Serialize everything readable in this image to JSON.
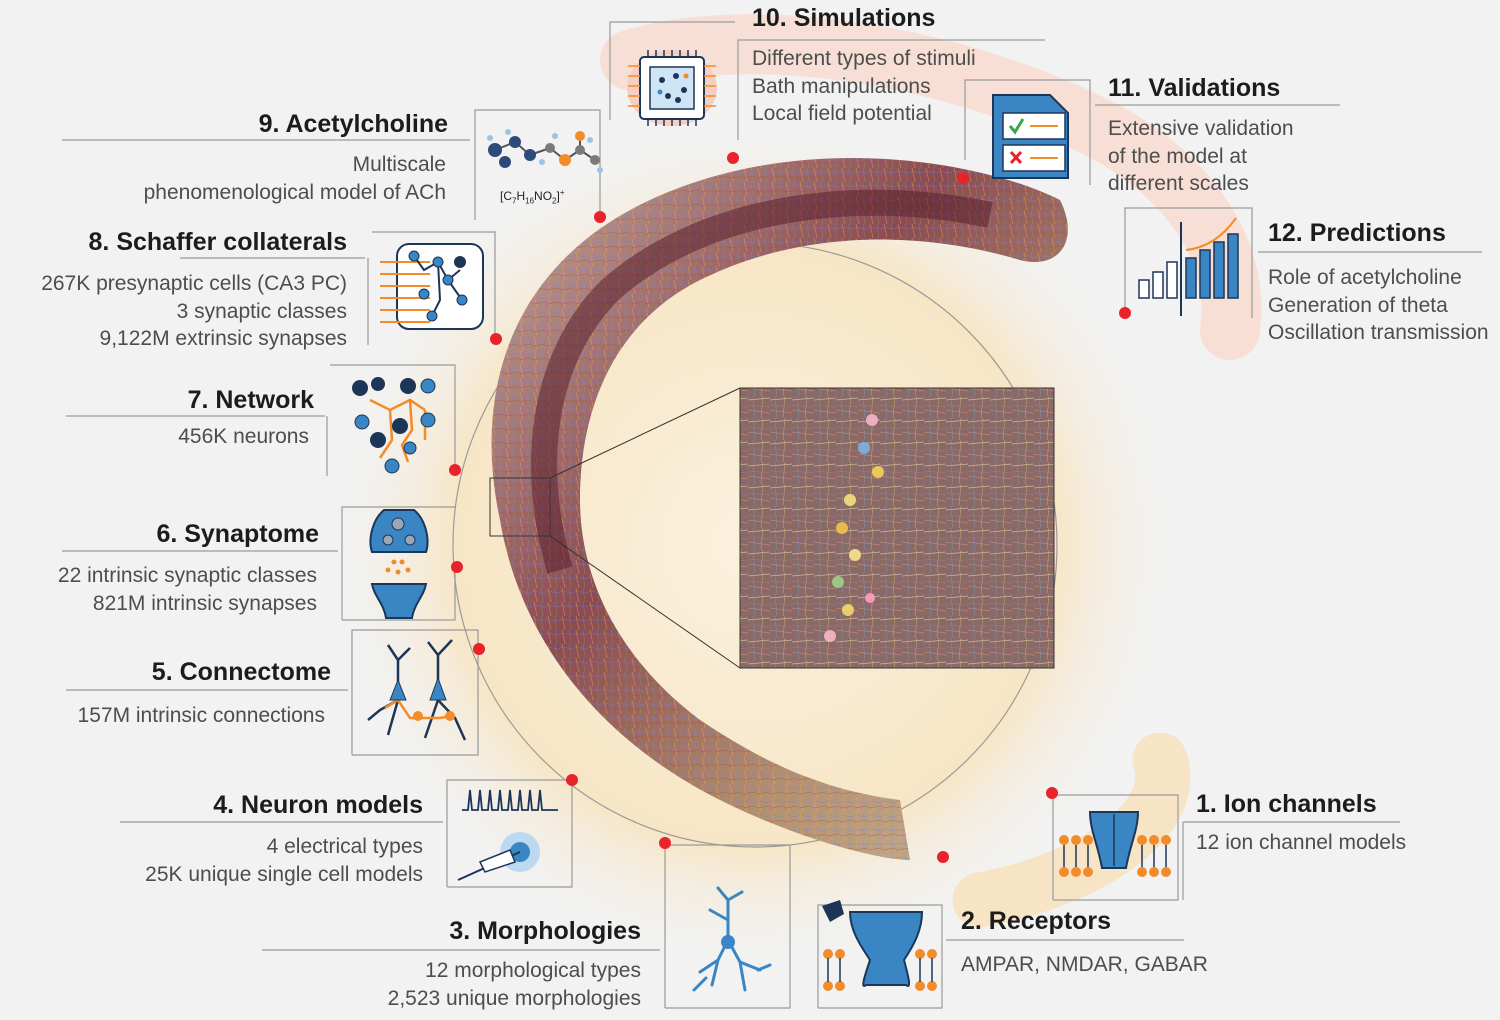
{
  "panels": [
    {
      "id": "simulations",
      "title": "10. Simulations",
      "lines": [
        "Different types of stimuli",
        "Bath manipulations",
        "Local field potential"
      ],
      "icon": "chip-icon"
    },
    {
      "id": "validations",
      "title": "11. Validations",
      "lines": [
        "Extensive validation",
        "of the model at",
        "different scales"
      ],
      "icon": "checklist-icon"
    },
    {
      "id": "predictions",
      "title": "12. Predictions",
      "lines": [
        "Role of acetylcholine",
        "Generation of theta",
        "Oscillation transmission"
      ],
      "icon": "bar-chart-icon"
    },
    {
      "id": "acetylcholine",
      "title": "9. Acetylcholine",
      "lines": [
        "Multiscale",
        "phenomenological model of ACh"
      ],
      "icon": "molecule-icon",
      "formula": {
        "base": "[C",
        "n1": "7",
        "mid1": "H",
        "n2": "16",
        "mid2": "NO",
        "n3": "2",
        "end": "]",
        "sup": "+"
      }
    },
    {
      "id": "schaffer",
      "title": "8. Schaffer collaterals",
      "lines": [
        "267K presynaptic cells (CA3 PC)",
        "3 synaptic classes",
        "9,122M extrinsic synapses"
      ],
      "icon": "projection-icon"
    },
    {
      "id": "network",
      "title": "7. Network",
      "lines": [
        "456K neurons"
      ],
      "icon": "network-icon"
    },
    {
      "id": "synaptome",
      "title": "6. Synaptome",
      "lines": [
        "22 intrinsic synaptic classes",
        "821M intrinsic synapses"
      ],
      "icon": "synapse-icon"
    },
    {
      "id": "connectome",
      "title": "5. Connectome",
      "lines": [
        "157M intrinsic connections"
      ],
      "icon": "connectome-icon"
    },
    {
      "id": "neuron_models",
      "title": "4. Neuron models",
      "lines": [
        "4 electrical types",
        "25K unique single cell models"
      ],
      "icon": "electrode-icon"
    },
    {
      "id": "morphologies",
      "title": "3. Morphologies",
      "lines": [
        "12 morphological types",
        "2,523 unique morphologies"
      ],
      "icon": "neuron-icon"
    },
    {
      "id": "receptors",
      "title": "2. Receptors",
      "lines": [
        "AMPAR, NMDAR, GABAR"
      ],
      "icon": "receptor-icon"
    },
    {
      "id": "ion_channels",
      "title": "1. Ion channels",
      "lines": [
        "12 ion channel models"
      ],
      "icon": "ion-channel-icon"
    }
  ],
  "colors": {
    "dot": "#e8232a",
    "accent_blue": "#3a86c4",
    "accent_orange": "#f28c28",
    "navy": "#1d3557",
    "line_gray": "#9a9a9a",
    "tissue_dark": "#6a2d3a",
    "halo": "#f6e7c8",
    "pink_band": "#f8ddd3"
  }
}
